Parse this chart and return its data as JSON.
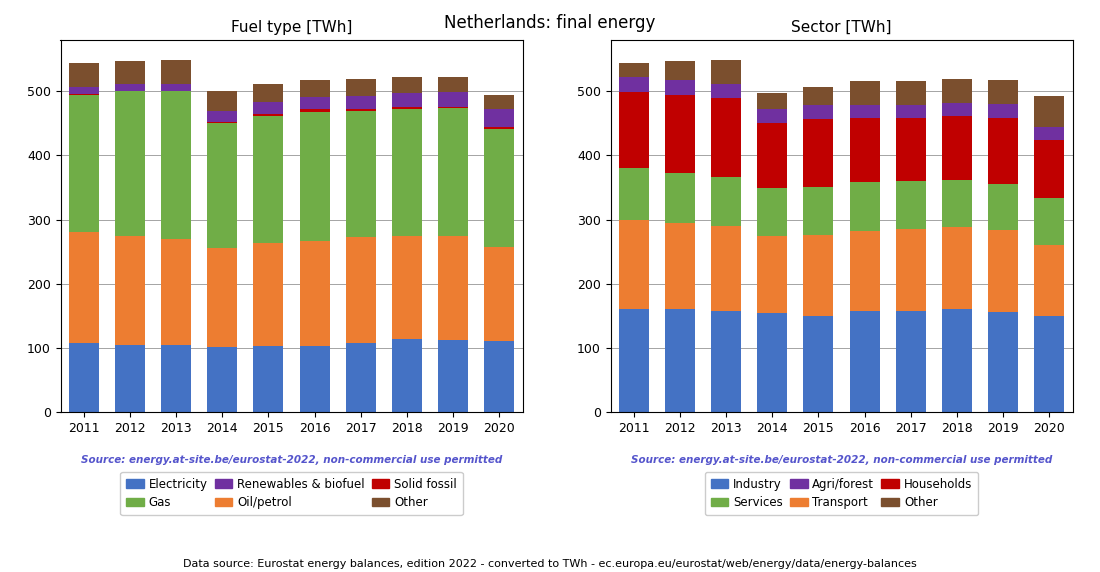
{
  "years": [
    2011,
    2012,
    2013,
    2014,
    2015,
    2016,
    2017,
    2018,
    2019,
    2020
  ],
  "title": "Netherlands: final energy",
  "footnote": "Data source: Eurostat energy balances, edition 2022 - converted to TWh - ec.europa.eu/eurostat/web/energy/data/energy-balances",
  "source_text": "Source: energy.at-site.be/eurostat-2022, non-commercial use permitted",
  "fuel_title": "Fuel type [TWh]",
  "fuel_labels": [
    "Electricity",
    "Oil/petrol",
    "Gas",
    "Solid fossil",
    "Renewables & biofuel",
    "Other"
  ],
  "fuel_colors": [
    "#4472c4",
    "#ed7d31",
    "#70ad47",
    "#c00000",
    "#7030a0",
    "#7b4f2e"
  ],
  "fuel_data": {
    "Electricity": [
      108,
      104,
      104,
      101,
      102,
      102,
      107,
      113,
      112,
      110
    ],
    "Oil/petrol": [
      172,
      170,
      166,
      154,
      162,
      165,
      165,
      162,
      162,
      147
    ],
    "Gas": [
      214,
      226,
      230,
      195,
      198,
      200,
      197,
      197,
      200,
      185
    ],
    "Solid fossil": [
      2,
      1,
      1,
      2,
      3,
      5,
      4,
      3,
      2,
      2
    ],
    "Renewables & biofuel": [
      11,
      10,
      10,
      17,
      19,
      19,
      20,
      22,
      23,
      28
    ],
    "Other": [
      37,
      36,
      38,
      31,
      27,
      27,
      26,
      25,
      23,
      22
    ]
  },
  "sector_title": "Sector [TWh]",
  "sector_labels": [
    "Industry",
    "Transport",
    "Services",
    "Households",
    "Agri/forest",
    "Other"
  ],
  "sector_colors": [
    "#4472c4",
    "#ed7d31",
    "#70ad47",
    "#c00000",
    "#7030a0",
    "#7b4f2e"
  ],
  "sector_data": {
    "Industry": [
      161,
      160,
      157,
      154,
      150,
      157,
      158,
      160,
      155,
      150
    ],
    "Transport": [
      139,
      135,
      133,
      121,
      126,
      125,
      127,
      128,
      128,
      111
    ],
    "Services": [
      80,
      78,
      77,
      74,
      75,
      76,
      75,
      73,
      73,
      73
    ],
    "Households": [
      119,
      121,
      122,
      102,
      106,
      100,
      98,
      100,
      103,
      90
    ],
    "Agri/forest": [
      23,
      24,
      23,
      21,
      22,
      21,
      21,
      21,
      21,
      21
    ],
    "Other": [
      22,
      29,
      37,
      25,
      28,
      37,
      37,
      37,
      37,
      47
    ]
  }
}
